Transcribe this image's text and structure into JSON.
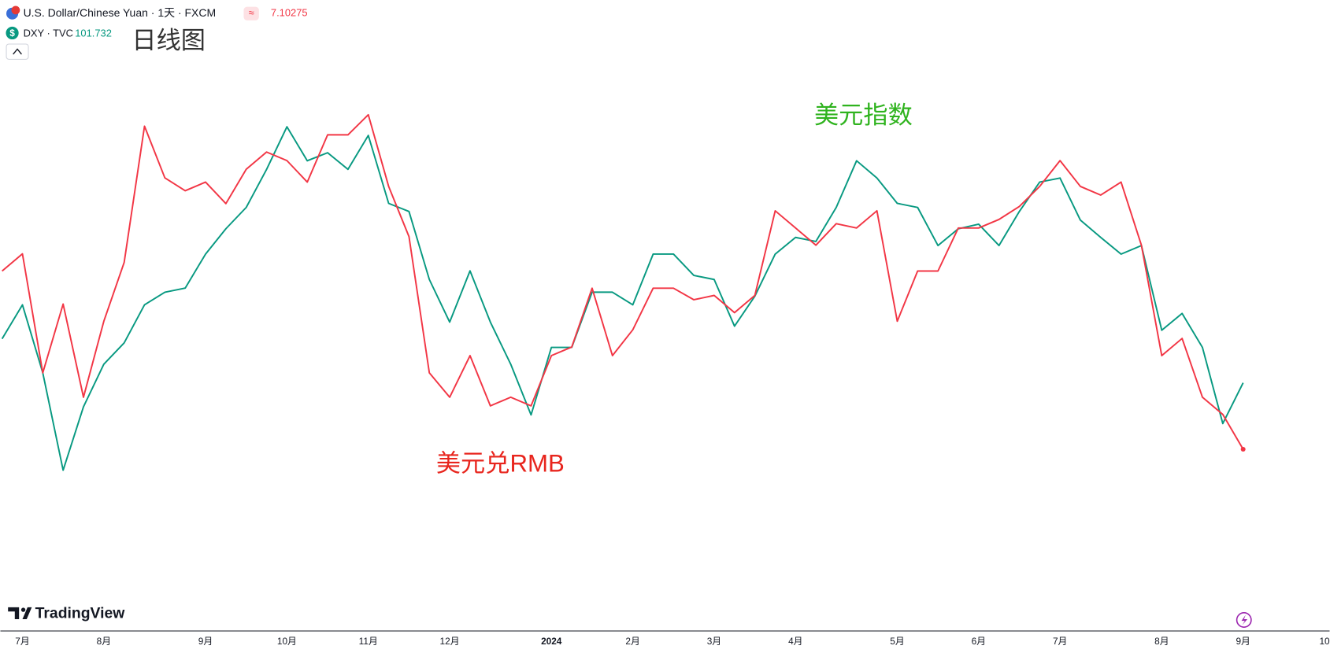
{
  "chart_data": {
    "type": "line",
    "title": "日线图",
    "annotations": [
      "美元指数",
      "美元兑RMB"
    ],
    "brand": "TradingView",
    "categories": [
      null,
      "7月",
      null,
      null,
      null,
      "8月",
      null,
      null,
      null,
      null,
      "9月",
      null,
      null,
      null,
      "10月",
      null,
      null,
      null,
      "11月",
      null,
      null,
      null,
      "12月",
      null,
      null,
      null,
      null,
      "2024",
      null,
      null,
      null,
      "2月",
      null,
      null,
      null,
      "3月",
      null,
      null,
      null,
      "4月",
      null,
      null,
      null,
      null,
      "5月",
      null,
      null,
      null,
      "6月",
      null,
      null,
      null,
      "7月",
      null,
      null,
      null,
      null,
      "8月",
      null,
      null,
      null,
      "9月",
      null,
      null,
      null,
      "10"
    ],
    "series": [
      {
        "name": "U.S. Dollar/Chinese Yuan · 1天 · FXCM",
        "color": "#f23645",
        "values": [
          7.227,
          7.239,
          7.156,
          7.204,
          7.139,
          7.192,
          7.233,
          7.328,
          7.292,
          7.283,
          7.289,
          7.274,
          7.298,
          7.31,
          7.304,
          7.289,
          7.322,
          7.322,
          7.336,
          7.286,
          7.251,
          7.156,
          7.139,
          7.168,
          7.133,
          7.139,
          7.133,
          7.168,
          7.174,
          7.215,
          7.168,
          7.186,
          7.215,
          7.215,
          7.207,
          7.21,
          7.198,
          7.21,
          7.269,
          7.257,
          7.245,
          7.26,
          7.257,
          7.269,
          7.192,
          7.227,
          7.227,
          7.257,
          7.257,
          7.263,
          7.272,
          7.286,
          7.304,
          7.286,
          7.28,
          7.289,
          7.245,
          7.168,
          7.18,
          7.139,
          7.127,
          7.10275,
          null,
          null,
          null,
          null
        ]
      },
      {
        "name": "DXY · TVC",
        "color": "#089981",
        "axis": "y2",
        "values": [
          102.6,
          103.27,
          101.93,
          100.01,
          101.26,
          102.1,
          102.52,
          103.27,
          103.52,
          103.6,
          104.27,
          104.77,
          105.19,
          105.94,
          106.78,
          106.11,
          106.27,
          105.94,
          106.61,
          105.27,
          105.11,
          103.77,
          102.93,
          103.94,
          102.93,
          102.1,
          101.1,
          102.43,
          102.43,
          103.52,
          103.52,
          103.27,
          104.27,
          104.27,
          103.85,
          103.77,
          102.85,
          103.44,
          104.27,
          104.6,
          104.52,
          105.19,
          106.11,
          105.77,
          105.27,
          105.19,
          104.44,
          104.77,
          104.86,
          104.44,
          105.11,
          105.69,
          105.77,
          104.94,
          104.6,
          104.27,
          104.44,
          102.77,
          103.1,
          102.43,
          100.93,
          101.732,
          null,
          null,
          null,
          null
        ]
      }
    ],
    "ylim": [
      6.976,
      7.416
    ],
    "y2lim": [
      96.84,
      109.28
    ],
    "grid": false
  }
}
